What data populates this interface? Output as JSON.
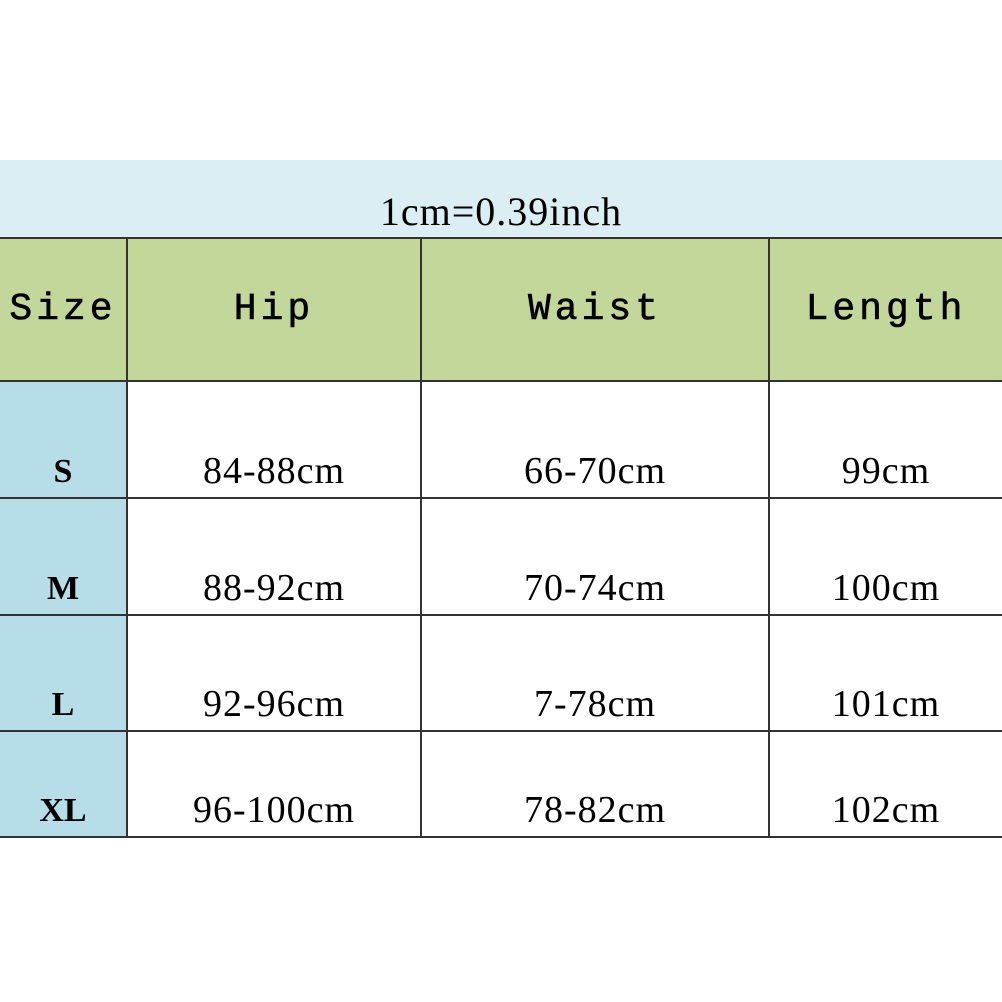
{
  "conversion_note": "1cm=0.39inch",
  "headers": [
    "Size",
    "Hip",
    "Waist",
    "Length"
  ],
  "rows": [
    {
      "size": "S",
      "hip": "84-88cm",
      "waist": "66-70cm",
      "length": "99cm"
    },
    {
      "size": "M",
      "hip": "88-92cm",
      "waist": "70-74cm",
      "length": "100cm"
    },
    {
      "size": "L",
      "hip": "92-96cm",
      "waist": "7-78cm",
      "length": "101cm"
    },
    {
      "size": "XL",
      "hip": "96-100cm",
      "waist": "78-82cm",
      "length": "102cm"
    }
  ],
  "colors": {
    "note_band": "#daeef3",
    "header": "#c4d79b",
    "size_column": "#b7dde8"
  }
}
